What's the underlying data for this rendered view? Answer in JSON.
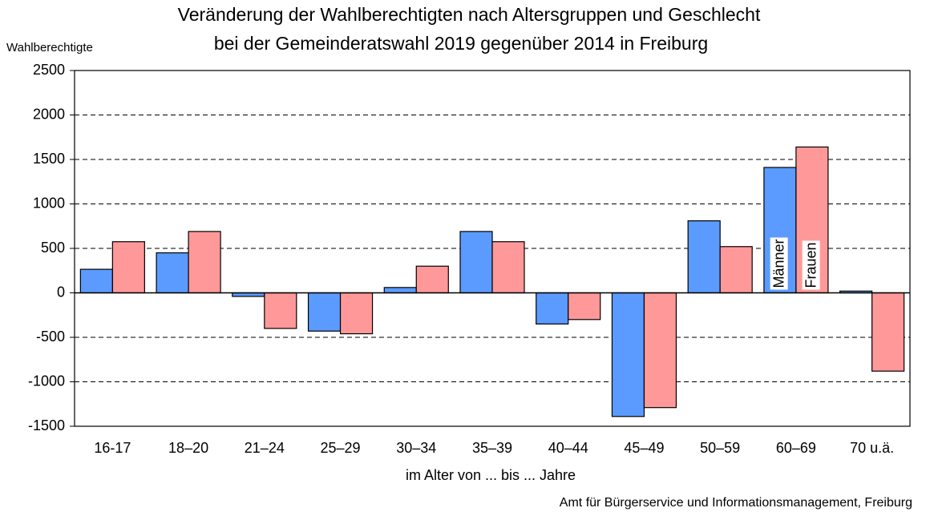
{
  "chart_data": {
    "type": "bar",
    "title": [
      "Veränderung der Wahlberechtigten nach Altersgruppen und Geschlecht",
      "bei der Gemeinderatswahl 2019 gegenüber 2014 in Freiburg"
    ],
    "y_label": "Wahlberechtigte",
    "x_label": "im Alter von ... bis ... Jahre",
    "source": "Amt für Bürgerservice und Informationsmanagement, Freiburg",
    "categories": [
      "16-17",
      "18–20",
      "21–24",
      "25–29",
      "30–34",
      "35–39",
      "40–44",
      "45–49",
      "50–59",
      "60–69",
      "70 u.ä."
    ],
    "series": [
      {
        "name": "Männer",
        "color": "#5b9bff",
        "values": [
          265,
          450,
          -40,
          -430,
          60,
          690,
          -350,
          -1390,
          810,
          1410,
          20
        ]
      },
      {
        "name": "Frauen",
        "color": "#ff9999",
        "values": [
          575,
          690,
          -400,
          -460,
          300,
          575,
          -300,
          -1290,
          520,
          1640,
          -880
        ]
      }
    ],
    "ylim": [
      -1500,
      2500
    ],
    "yticks": [
      -1500,
      -1000,
      -500,
      0,
      500,
      1000,
      1500,
      2000,
      2500
    ],
    "grid": true
  }
}
